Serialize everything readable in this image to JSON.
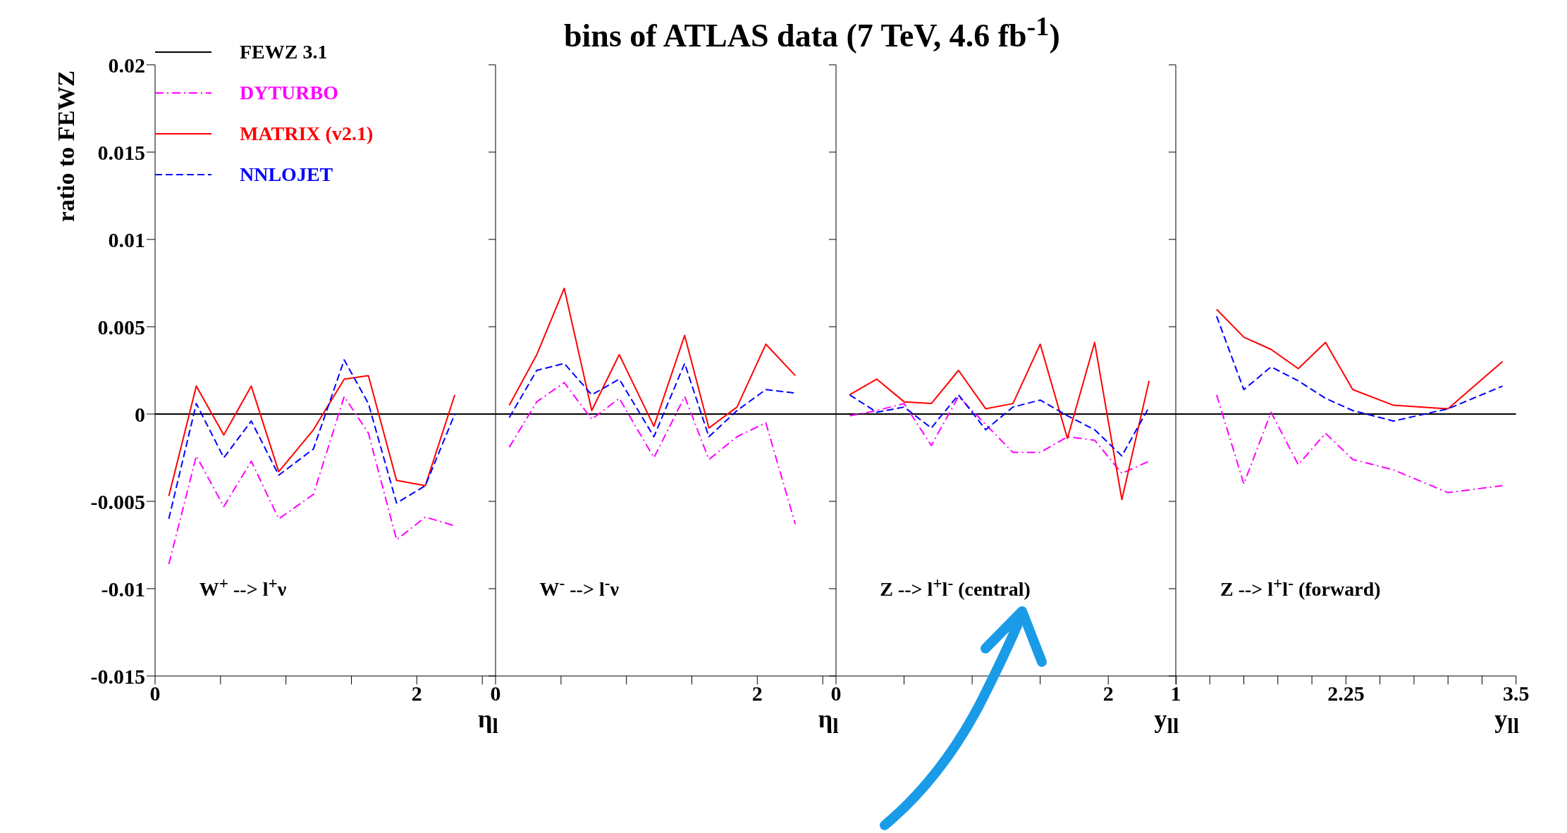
{
  "chart_data": [
    {
      "type": "line",
      "ylabel": "ratio to FEWZ",
      "xlabel": "η$_{l}$",
      "legend": "top left",
      "annotations": [
        "W$^{+}$ --> l$^{+}$ν"
      ],
      "xlim": [
        0,
        2.6
      ],
      "xticks": [
        0,
        {
          "value": 0.5,
          "label": null
        },
        {
          "value": 1,
          "label": null
        },
        {
          "value": 1.5,
          "label": null
        },
        2,
        {
          "value": 2.5,
          "label": null
        }
      ],
      "ylim": [
        -0.015,
        0.02
      ],
      "yticks": [
        -0.015,
        -0.01,
        -0.005,
        0,
        0.005,
        0.01,
        0.015,
        0.02
      ],
      "x": [
        0.105,
        0.315,
        0.525,
        0.735,
        0.945,
        1.21,
        1.445,
        1.63,
        1.845,
        2.065,
        2.29
      ],
      "series": [
        {
          "name": "FEWZ 3.1",
          "color": "#000000",
          "line_style": "solid",
          "x": [
            0,
            2.6
          ],
          "values": [
            0,
            0
          ]
        },
        {
          "name": "DYTURBO",
          "color": "#ff00ff",
          "line_style": "dashdot",
          "values": [
            -0.0086,
            -0.0024,
            -0.0053,
            -0.0027,
            -0.006,
            -0.0046,
            0.001,
            -0.0011,
            -0.0072,
            -0.0059,
            -0.0064
          ]
        },
        {
          "name": "MATRIX (v2.1)",
          "color": "#ff0000",
          "line_style": "solid",
          "values": [
            -0.0047,
            0.0016,
            -0.0012,
            0.0016,
            -0.0033,
            -0.0009,
            0.002,
            0.0022,
            -0.0038,
            -0.0041,
            0.0011
          ]
        },
        {
          "name": "NNLOJET",
          "color": "#0000ff",
          "line_style": "dashed",
          "values": [
            -0.006,
            0.0006,
            -0.0025,
            -0.0004,
            -0.0035,
            -0.002,
            0.0031,
            0.0006,
            -0.0051,
            -0.0041,
            0
          ]
        }
      ]
    },
    {
      "type": "line",
      "title": "bins of ATLAS data (7 TeV, 4.6 fb$^{-1}$)",
      "xlabel": "η$_{l}$",
      "annotations": [
        "W$^{-}$ --> l$^{-}$ν"
      ],
      "tick_labels": "x",
      "xlim": [
        0,
        2.6
      ],
      "xticks": [
        0,
        {
          "value": 0.5,
          "label": null
        },
        {
          "value": 1,
          "label": null
        },
        {
          "value": 1.5,
          "label": null
        },
        2,
        {
          "value": 2.5,
          "label": null
        }
      ],
      "ylim": [
        -0.015,
        0.02
      ],
      "yticks": [
        -0.015,
        -0.01,
        -0.005,
        0,
        0.005,
        0.01,
        0.015,
        0.02
      ],
      "x": [
        0.105,
        0.315,
        0.525,
        0.735,
        0.945,
        1.21,
        1.445,
        1.63,
        1.845,
        2.065,
        2.29
      ],
      "series": [
        {
          "color": "#000000",
          "line_style": "solid",
          "x": [
            0,
            2.6
          ],
          "values": [
            0,
            0
          ]
        },
        {
          "color": "#ff00ff",
          "line_style": "dashdot",
          "values": [
            -0.0019,
            0.0007,
            0.0018,
            -0.0003,
            0.0009,
            -0.0025,
            0.001,
            -0.0026,
            -0.0013,
            -0.0005,
            -0.0063
          ]
        },
        {
          "color": "#ff0000",
          "line_style": "solid",
          "values": [
            0.0005,
            0.0034,
            0.0072,
            0.0002,
            0.0034,
            -0.0007,
            0.0045,
            -0.0008,
            0.0004,
            0.004,
            0.0022
          ]
        },
        {
          "color": "#0000ff",
          "line_style": "dashed",
          "values": [
            -0.0002,
            0.0025,
            0.0029,
            0.0011,
            0.002,
            -0.0013,
            0.0029,
            -0.0013,
            0.0002,
            0.0014,
            0.0012
          ]
        }
      ]
    },
    {
      "type": "line",
      "xlabel": "y$_{ll}$",
      "annotations": [
        "Z --> l$^{+}$l$^{-}$ (central)"
      ],
      "tick_labels": "x",
      "xlim": [
        0,
        2.5
      ],
      "xticks": [
        0,
        {
          "value": 0.5,
          "label": null
        },
        {
          "value": 1,
          "label": null
        },
        {
          "value": 1.5,
          "label": null
        },
        2,
        {
          "value": 2.5,
          "label": null
        }
      ],
      "ylim": [
        -0.015,
        0.02
      ],
      "yticks": [
        -0.015,
        -0.01,
        -0.005,
        0,
        0.005,
        0.01,
        0.015,
        0.02
      ],
      "x": [
        0.1,
        0.3,
        0.5,
        0.7,
        0.9,
        1.1,
        1.3,
        1.5,
        1.7,
        1.9,
        2.1,
        2.3
      ],
      "series": [
        {
          "color": "#000000",
          "line_style": "solid",
          "x": [
            0,
            2.5
          ],
          "values": [
            0,
            0
          ]
        },
        {
          "color": "#ff00ff",
          "line_style": "dashdot",
          "values": [
            -0.0001,
            0.0002,
            0.0006,
            -0.0018,
            0.001,
            -0.0006,
            -0.0022,
            -0.0022,
            -0.0013,
            -0.0015,
            -0.0034,
            -0.0027
          ]
        },
        {
          "color": "#ff0000",
          "line_style": "solid",
          "values": [
            0.0011,
            0.002,
            0.0007,
            0.0006,
            0.0025,
            0.0003,
            0.0006,
            0.004,
            -0.0014,
            0.0041,
            -0.0049,
            0.0019
          ]
        },
        {
          "color": "#0000ff",
          "line_style": "dashed",
          "values": [
            0.0011,
            0.0001,
            0.0004,
            -0.0008,
            0.0011,
            -0.0009,
            0.0004,
            0.0008,
            -0.0001,
            -0.0009,
            -0.0024,
            0.0004
          ]
        }
      ]
    },
    {
      "type": "line",
      "xlabel": "y$_{ll}$",
      "annotations": [
        "Z --> l$^{+}$l$^{-}$ (forward)"
      ],
      "tick_labels": "x",
      "xlim": [
        1,
        3.5
      ],
      "xticks": [
        1,
        {
          "value": 1.25,
          "label": null
        },
        {
          "value": 1.5,
          "label": null
        },
        {
          "value": 1.75,
          "label": null
        },
        {
          "value": 2,
          "label": null
        },
        2.25,
        {
          "value": 2.5,
          "label": null
        },
        {
          "value": 2.75,
          "label": null
        },
        {
          "value": 3,
          "label": null
        },
        {
          "value": 3.25,
          "label": null
        },
        3.5
      ],
      "ylim": [
        -0.015,
        0.02
      ],
      "yticks": [
        -0.015,
        -0.01,
        -0.005,
        0,
        0.005,
        0.01,
        0.015,
        0.02
      ],
      "x": [
        1.3,
        1.5,
        1.7,
        1.9,
        2.1,
        2.3,
        2.6,
        3.0,
        3.4
      ],
      "series": [
        {
          "color": "#000000",
          "line_style": "solid",
          "x": [
            1,
            3.5
          ],
          "values": [
            0,
            0
          ]
        },
        {
          "color": "#ff00ff",
          "line_style": "dashdot",
          "values": [
            0.0011,
            -0.004,
            0.0001,
            -0.0029,
            -0.0011,
            -0.0026,
            -0.0032,
            -0.0045,
            -0.0041
          ]
        },
        {
          "color": "#ff0000",
          "line_style": "solid",
          "values": [
            0.006,
            0.0044,
            0.0037,
            0.0026,
            0.0041,
            0.0014,
            0.0005,
            0.0003,
            0.003
          ]
        },
        {
          "color": "#0000ff",
          "line_style": "dashed",
          "values": [
            0.0056,
            0.0014,
            0.0027,
            0.0019,
            0.0009,
            0.0002,
            -0.0004,
            0.0003,
            0.0016
          ]
        }
      ]
    }
  ]
}
